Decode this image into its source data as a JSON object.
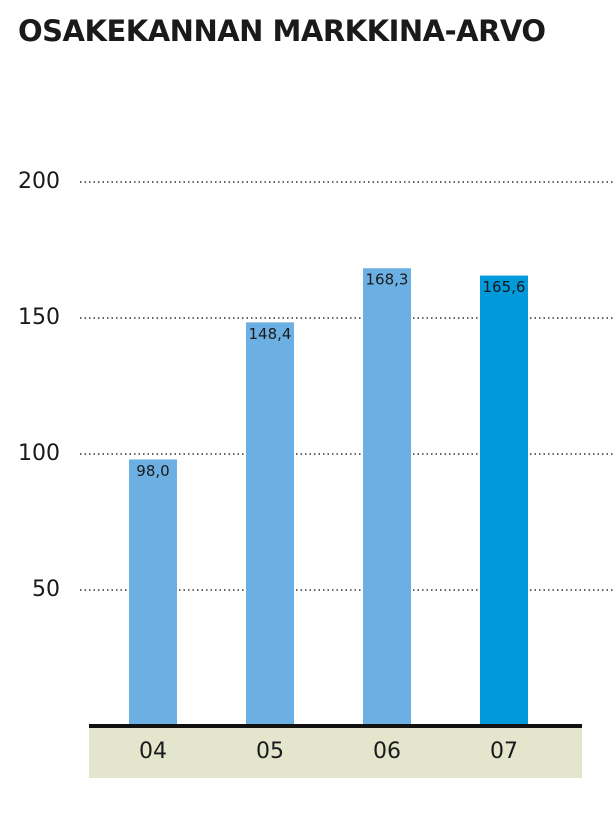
{
  "chart_data": {
    "type": "bar",
    "title": "OSAKEKANNAN MARKKINA-ARVO",
    "categories": [
      "04",
      "05",
      "06",
      "07"
    ],
    "values": [
      98.0,
      148.4,
      168.3,
      165.6
    ],
    "value_labels": [
      "98,0",
      "148,4",
      "168,3",
      "165,6"
    ],
    "colors": [
      "#6cb0e3",
      "#6cb0e3",
      "#6cb0e3",
      "#0099d9"
    ],
    "ylim": [
      0,
      200
    ],
    "yticks": [
      50,
      100,
      150,
      200
    ],
    "grid": true
  }
}
